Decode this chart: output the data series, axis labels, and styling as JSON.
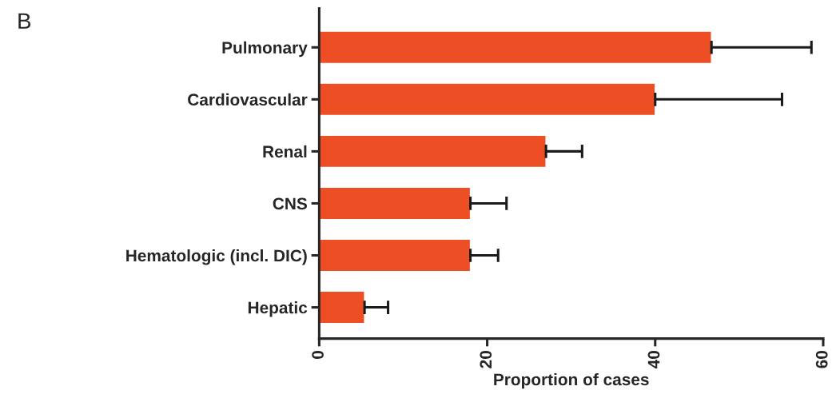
{
  "chart_data": {
    "type": "bar",
    "orientation": "horizontal",
    "xlabel": "Proportion of cases",
    "categories": [
      "Pulmonary",
      "Cardiovascular",
      "Renal",
      "CNS",
      "Hematologic (incl. DIC)",
      "Hepatic"
    ],
    "values": [
      46.7,
      40.0,
      27.0,
      18.0,
      18.0,
      5.4
    ],
    "errors": [
      [
        46.7,
        58.6
      ],
      [
        40.0,
        55.1
      ],
      [
        27.0,
        31.3
      ],
      [
        18.0,
        22.3
      ],
      [
        18.0,
        21.3
      ],
      [
        5.4,
        8.2
      ]
    ],
    "color": "#ee4e24",
    "xlim": [
      0,
      60
    ],
    "xticks": [
      0,
      20,
      40,
      60
    ],
    "grid": false,
    "annotations": [
      "B"
    ]
  }
}
